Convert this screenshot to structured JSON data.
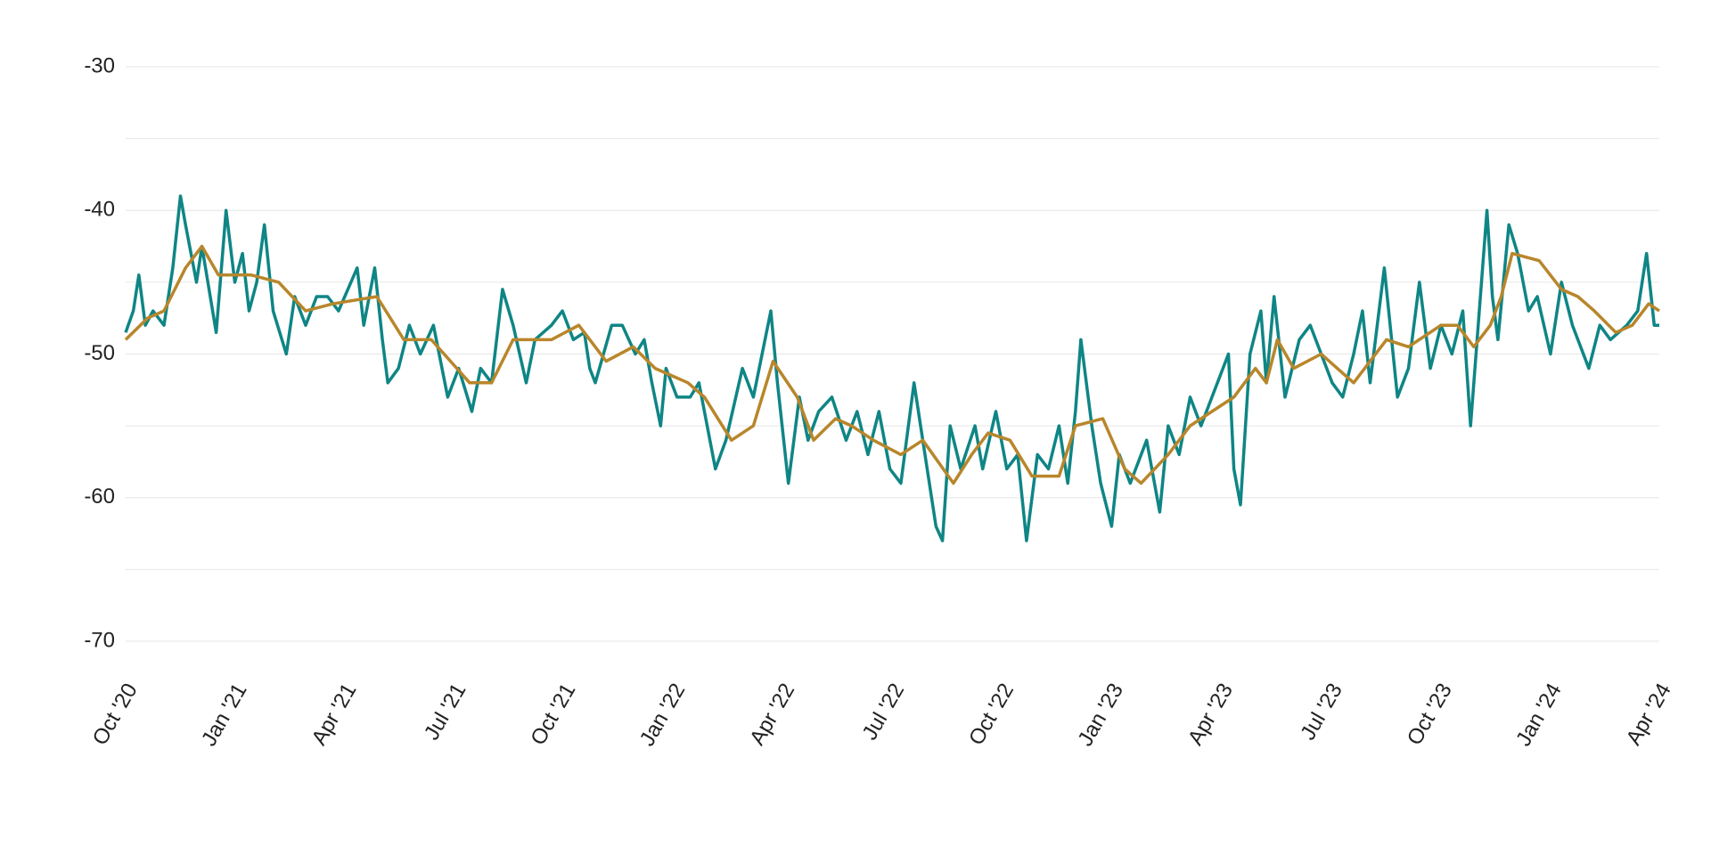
{
  "chart_data": {
    "type": "line",
    "xlim": [
      0,
      42
    ],
    "xticks": [
      {
        "value": 0,
        "label": "Oct '20"
      },
      {
        "value": 3,
        "label": "Jan '21"
      },
      {
        "value": 6,
        "label": "Apr '21"
      },
      {
        "value": 9,
        "label": "Jul '21"
      },
      {
        "value": 12,
        "label": "Oct '21"
      },
      {
        "value": 15,
        "label": "Jan '22"
      },
      {
        "value": 18,
        "label": "Apr '22"
      },
      {
        "value": 21,
        "label": "Jul '22"
      },
      {
        "value": 24,
        "label": "Oct '22"
      },
      {
        "value": 27,
        "label": "Jan '23"
      },
      {
        "value": 30,
        "label": "Apr '23"
      },
      {
        "value": 33,
        "label": "Jul '23"
      },
      {
        "value": 36,
        "label": "Oct '23"
      },
      {
        "value": 39,
        "label": "Jan '24"
      },
      {
        "value": 42,
        "label": "Apr '24"
      }
    ],
    "ylim": [
      -70,
      -30
    ],
    "yticks": [
      -30,
      -40,
      -50,
      -60,
      -70
    ],
    "yminor": [
      -35,
      -45,
      -55,
      -65
    ],
    "grid": true,
    "series": [
      {
        "color": "#0f8585",
        "x": [
          0,
          0.21,
          0.36,
          0.54,
          0.75,
          1.05,
          1.29,
          1.5,
          1.64,
          1.94,
          2.09,
          2.48,
          2.75,
          2.99,
          3.2,
          3.38,
          3.59,
          3.8,
          4.04,
          4.4,
          4.63,
          4.93,
          5.23,
          5.53,
          5.83,
          6.34,
          6.52,
          6.82,
          7.03,
          7.18,
          7.47,
          7.77,
          8.07,
          8.43,
          8.82,
          9.12,
          9.48,
          9.72,
          10.02,
          10.32,
          10.61,
          10.97,
          11.21,
          11.66,
          11.96,
          12.26,
          12.56,
          12.71,
          12.86,
          13.31,
          13.6,
          13.96,
          14.2,
          14.41,
          14.65,
          14.8,
          15.1,
          15.46,
          15.7,
          16.15,
          16.44,
          16.89,
          17.19,
          17.67,
          17.85,
          18.15,
          18.45,
          18.69,
          18.98,
          19.34,
          19.73,
          20.03,
          20.33,
          20.63,
          20.93,
          21.23,
          21.59,
          21.83,
          22.19,
          22.37,
          22.58,
          22.87,
          23.26,
          23.47,
          23.83,
          24.13,
          24.43,
          24.67,
          24.97,
          25.27,
          25.56,
          25.8,
          26.01,
          26.16,
          26.46,
          26.7,
          27,
          27.21,
          27.51,
          27.96,
          28.32,
          28.55,
          28.85,
          29.15,
          29.45,
          29.75,
          30.2,
          30.35,
          30.53,
          30.79,
          31.09,
          31.24,
          31.45,
          31.75,
          32.14,
          32.44,
          32.74,
          33.04,
          33.33,
          33.63,
          33.87,
          34.08,
          34.47,
          34.83,
          35.13,
          35.43,
          35.73,
          36.02,
          36.32,
          36.62,
          36.83,
          37.07,
          37.28,
          37.43,
          37.58,
          37.88,
          38.12,
          38.42,
          38.66,
          39.02,
          39.32,
          39.62,
          40.07,
          40.37,
          40.66,
          41.11,
          41.41,
          41.65,
          41.86,
          42
        ],
        "values": [
          -48.5,
          -47,
          -44.5,
          -48,
          -47,
          -48,
          -44,
          -39,
          -41,
          -45,
          -42.5,
          -48.5,
          -40,
          -45,
          -43,
          -47,
          -45,
          -41,
          -47,
          -50,
          -46,
          -48,
          -46,
          -46,
          -47,
          -44,
          -48,
          -44,
          -49,
          -52,
          -51,
          -48,
          -50,
          -48,
          -53,
          -51,
          -54,
          -51,
          -52,
          -45.5,
          -48,
          -52,
          -49,
          -48,
          -47,
          -49,
          -48.5,
          -51,
          -52,
          -48,
          -48,
          -50,
          -49,
          -52,
          -55,
          -51,
          -53,
          -53,
          -52,
          -58,
          -56,
          -51,
          -53,
          -47,
          -52,
          -59,
          -53,
          -56,
          -54,
          -53,
          -56,
          -54,
          -57,
          -54,
          -58,
          -59,
          -52,
          -56,
          -62,
          -63,
          -55,
          -58,
          -55,
          -58,
          -54,
          -58,
          -57,
          -63,
          -57,
          -58,
          -55,
          -59,
          -54,
          -49,
          -55,
          -59,
          -62,
          -57,
          -59,
          -56,
          -61,
          -55,
          -57,
          -53,
          -55,
          -53,
          -50,
          -58,
          -60.5,
          -50,
          -47,
          -52,
          -46,
          -53,
          -49,
          -48,
          -50,
          -52,
          -53,
          -50,
          -47,
          -52,
          -44,
          -53,
          -51,
          -45,
          -51,
          -48,
          -50,
          -47,
          -55,
          -47,
          -40,
          -46,
          -49,
          -41,
          -43,
          -47,
          -46,
          -50,
          -45,
          -48,
          -51,
          -48,
          -49,
          -48,
          -47,
          -43,
          -48,
          -48
        ]
      },
      {
        "color": "#b8862b",
        "x": [
          0,
          0.6,
          1.05,
          1.64,
          2.09,
          2.54,
          3.44,
          4.19,
          4.93,
          5.68,
          6.88,
          7.62,
          8.37,
          9.42,
          10.02,
          10.61,
          11.66,
          12.41,
          13.16,
          13.9,
          14.5,
          15.4,
          15.85,
          16.59,
          17.19,
          17.73,
          18.39,
          18.84,
          19.44,
          19.88,
          20.48,
          21.23,
          21.83,
          22.67,
          23.17,
          23.62,
          24.22,
          24.82,
          25.56,
          26.01,
          26.76,
          27.36,
          27.81,
          28.55,
          29.15,
          29.75,
          30.35,
          30.94,
          31.24,
          31.54,
          31.99,
          32.74,
          33.18,
          33.63,
          34.53,
          35.13,
          36.02,
          36.47,
          36.92,
          37.37,
          37.67,
          37.97,
          38.71,
          39.32,
          39.77,
          40.22,
          40.81,
          41.26,
          41.71,
          42
        ],
        "values": [
          -49,
          -47.5,
          -47,
          -44,
          -42.5,
          -44.5,
          -44.5,
          -45,
          -47,
          -46.5,
          -46,
          -49,
          -49,
          -52,
          -52,
          -49,
          -49,
          -48,
          -50.5,
          -49.5,
          -51,
          -52,
          -53,
          -56,
          -55,
          -50.5,
          -53,
          -56,
          -54.5,
          -55,
          -56,
          -57,
          -56,
          -59,
          -57,
          -55.5,
          -56,
          -58.5,
          -58.5,
          -55,
          -54.5,
          -58,
          -59,
          -57,
          -55,
          -54,
          -53,
          -51,
          -52,
          -49,
          -51,
          -50,
          -51,
          -52,
          -49,
          -49.5,
          -48,
          -48,
          -49.5,
          -48,
          -46,
          -43,
          -43.5,
          -45.5,
          -46,
          -47,
          -48.5,
          -48,
          -46.5,
          -47
        ]
      }
    ]
  }
}
